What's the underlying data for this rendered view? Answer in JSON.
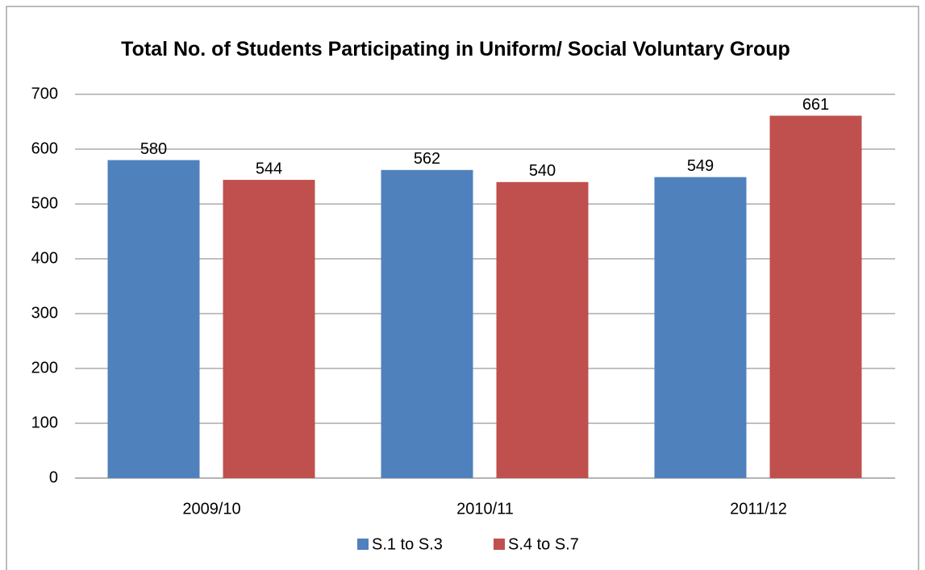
{
  "chart_data": {
    "type": "bar",
    "title": "Total No. of Students Participating in Uniform/ Social Voluntary Group",
    "categories": [
      "2009/10",
      "2010/11",
      "2011/12"
    ],
    "series": [
      {
        "name": "S.1 to S.3",
        "color": "#4f81bd",
        "values": [
          580,
          562,
          549
        ]
      },
      {
        "name": "S.4 to S.7",
        "color": "#c0504d",
        "values": [
          544,
          540,
          661
        ]
      }
    ],
    "ylim": [
      0,
      700
    ],
    "yticks": [
      0,
      100,
      200,
      300,
      400,
      500,
      600,
      700
    ],
    "grid": true,
    "legend": "bottom"
  }
}
